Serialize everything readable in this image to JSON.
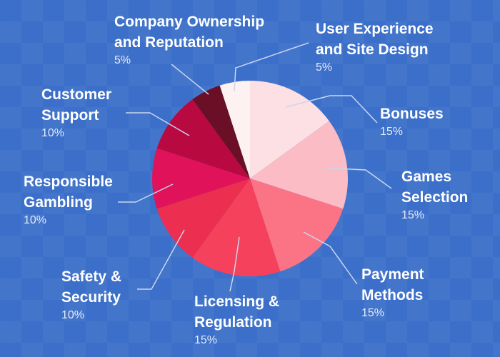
{
  "chart_data": {
    "type": "pie",
    "categories": [
      "Bonuses",
      "Games Selection",
      "Payment Methods",
      "Licensing & Regulation",
      "Safety & Security",
      "Responsible Gambling",
      "Customer Support",
      "Company Ownership and Reputation",
      "User Experience and Site Design"
    ],
    "values": [
      15,
      15,
      15,
      15,
      10,
      10,
      10,
      5,
      5
    ],
    "value_labels": [
      "15%",
      "15%",
      "15%",
      "15%",
      "10%",
      "10%",
      "10%",
      "5%",
      "5%"
    ],
    "colors": [
      "#fde0e4",
      "#fbbcc5",
      "#fb7486",
      "#f6415c",
      "#ec2e50",
      "#df125a",
      "#b80a40",
      "#6a0f26",
      "#fdf1f1"
    ]
  }
}
